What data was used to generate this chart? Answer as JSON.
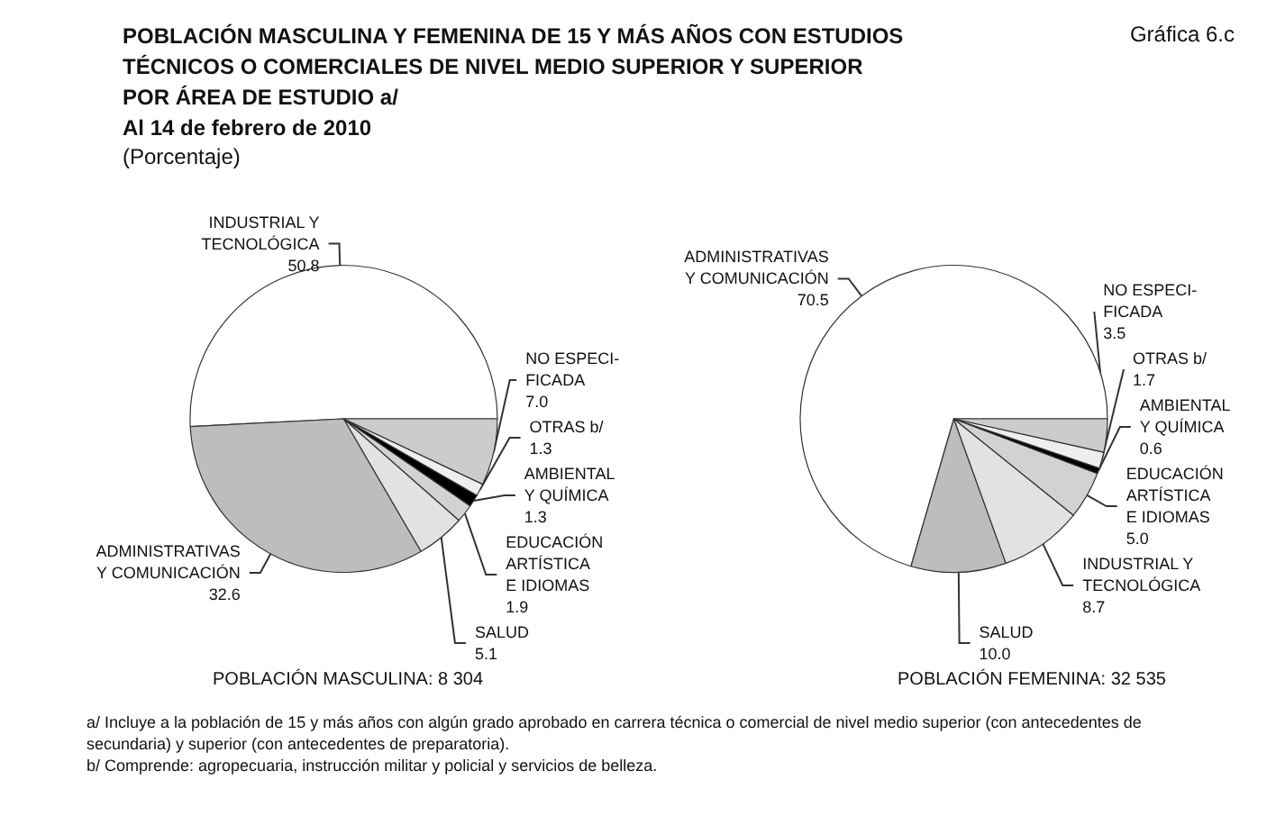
{
  "chart_data": [
    {
      "type": "pie",
      "title": "POBLACIÓN MASCULINA Y FEMENINA DE 15 Y MÁS AÑOS CON ESTUDIOS TÉCNICOS O COMERCIALES DE NIVEL MEDIO SUPERIOR Y SUPERIOR POR ÁREA DE ESTUDIO a/",
      "subtitle": "Al 14 de febrero de 2010",
      "annotations": [
        "Gráfica 6.c",
        "(Porcentaje)",
        "POBLACIÓN MASCULINA: 8 304"
      ],
      "categories": [
        "INDUSTRIAL Y\nTECNOLÓGICA",
        "ADMINISTRATIVAS\nY COMUNICACIÓN",
        "SALUD",
        "EDUCACIÓN\nARTÍSTICA\nE IDIOMAS",
        "AMBIENTAL\nY QUÍMICA",
        "OTRAS b/",
        "NO ESPECI-\nFICADA"
      ],
      "values": [
        50.8,
        32.6,
        5.1,
        1.9,
        1.3,
        1.3,
        7.0
      ],
      "value_labels": [
        "50.8",
        "32.6",
        "5.1",
        "1.9",
        "1.3",
        "1.3",
        "7.0"
      ],
      "colors": [
        "#ffffff",
        "#bdbdbd",
        "#e2e2e2",
        "#d2d2d2",
        "#000000",
        "#eeeeee",
        "#cccccc"
      ],
      "legend": false
    },
    {
      "type": "pie",
      "annotations": [
        "POBLACIÓN FEMENINA: 32 535",
        "a/ Incluye a la población de 15 y más años con algún grado aprobado en carrera técnica o comercial de nivel medio superior (con antecedentes de secundaria) y superior (con antecedentes de preparatoria).",
        "b/ Comprende: agropecuaria, instrucción militar y policial y servicios de belleza."
      ],
      "categories": [
        "ADMINISTRATIVAS\nY COMUNICACIÓN",
        "SALUD",
        "INDUSTRIAL Y\nTECNOLÓGICA",
        "EDUCACIÓN\nARTÍSTICA\nE IDIOMAS",
        "AMBIENTAL\nY QUÍMICA",
        "OTRAS b/",
        "NO ESPECI-\nFICADA"
      ],
      "values": [
        70.5,
        10.0,
        8.7,
        5.0,
        0.6,
        1.7,
        3.5
      ],
      "value_labels": [
        "70.5",
        "10.0",
        "8.7",
        "5.0",
        "0.6",
        "1.7",
        "3.5"
      ],
      "colors": [
        "#ffffff",
        "#bdbdbd",
        "#e2e2e2",
        "#d2d2d2",
        "#000000",
        "#eeeeee",
        "#cccccc"
      ],
      "legend": false
    }
  ]
}
